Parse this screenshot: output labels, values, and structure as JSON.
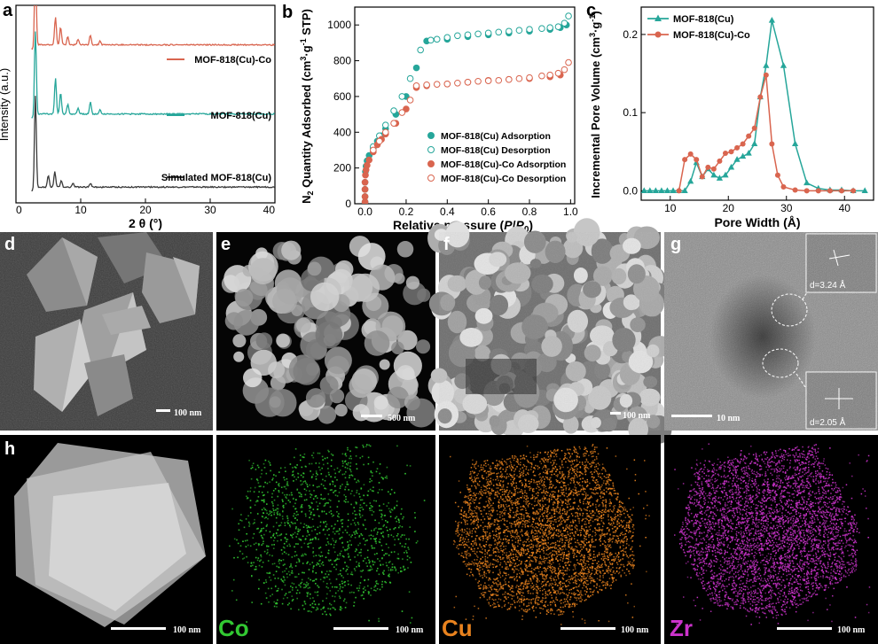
{
  "figure": {
    "panel_letters": [
      "a",
      "b",
      "c",
      "d",
      "e",
      "f",
      "g",
      "h"
    ],
    "colors": {
      "simulated": "#3a3a3a",
      "mof818cu": "#26a69a",
      "mof818cuco": "#d9654f",
      "co_map": "#32c832",
      "cu_map": "#e8821e",
      "zr_map": "#cc33cc"
    },
    "scale_bars": {
      "d": "100 nm",
      "e": "500 nm",
      "f": "100 nm",
      "g": "10 nm",
      "h1": "100 nm",
      "h2": "100 nm",
      "h3": "100 nm",
      "h4": "100 nm"
    },
    "lattice_labels": [
      "d=3.24 Å",
      "d=2.05 Å"
    ],
    "element_labels": [
      "Co",
      "Cu",
      "Zr"
    ]
  },
  "chart_data": [
    {
      "panel": "a",
      "type": "line",
      "xlabel": "2 θ (°)",
      "ylabel": "Intensity (a.u.)",
      "xlim": [
        0,
        40
      ],
      "xticks": [
        0,
        10,
        20,
        30,
        40
      ],
      "xtick_labels": [
        "0",
        "10",
        "20",
        "30",
        "40"
      ],
      "legend_placement": "inline-right",
      "series": [
        {
          "name": "MOF-818(Cu)-Co",
          "color": "#d9654f",
          "baseline": 0.8,
          "peaks": [
            [
              3.0,
              0.38
            ],
            [
              6.1,
              0.14
            ],
            [
              6.9,
              0.09
            ],
            [
              8.0,
              0.04
            ],
            [
              9.6,
              0.03
            ],
            [
              11.5,
              0.05
            ],
            [
              13.0,
              0.02
            ]
          ]
        },
        {
          "name": "MOF-818(Cu)",
          "color": "#26a69a",
          "baseline": 0.45,
          "peaks": [
            [
              3.0,
              0.42
            ],
            [
              6.1,
              0.18
            ],
            [
              6.9,
              0.11
            ],
            [
              8.0,
              0.05
            ],
            [
              9.6,
              0.03
            ],
            [
              11.5,
              0.06
            ],
            [
              13.0,
              0.02
            ]
          ]
        },
        {
          "name": "Simulated MOF-818(Cu)",
          "color": "#3a3a3a",
          "baseline": 0.08,
          "peaks": [
            [
              3.0,
              0.46
            ],
            [
              5.0,
              0.06
            ],
            [
              6.0,
              0.08
            ],
            [
              7.0,
              0.03
            ],
            [
              8.8,
              0.02
            ],
            [
              11.5,
              0.02
            ]
          ]
        }
      ]
    },
    {
      "panel": "b",
      "type": "scatter",
      "xlabel": "Relative pressure (P/P0)",
      "ylabel": "N2 Quantity Adsorbed (cm3·g-1 STP)",
      "xlim": [
        -0.05,
        1.02
      ],
      "ylim": [
        0,
        1100
      ],
      "xticks": [
        0.0,
        0.2,
        0.4,
        0.6,
        0.8,
        1.0
      ],
      "xtick_labels": [
        "0.0",
        "0.2",
        "0.4",
        "0.6",
        "0.8",
        "1.0"
      ],
      "yticks": [
        0,
        200,
        400,
        600,
        800,
        1000
      ],
      "ytick_labels": [
        "0",
        "200",
        "400",
        "600",
        "800",
        "1000"
      ],
      "legend_placement": "lower-right",
      "series": [
        {
          "name": "MOF-818(Cu) Adsorption",
          "color": "#26a69a",
          "filled": true,
          "x": [
            0.0,
            0.0,
            0.0,
            0.0,
            0.002,
            0.005,
            0.01,
            0.02,
            0.04,
            0.06,
            0.08,
            0.1,
            0.15,
            0.2,
            0.25,
            0.3,
            0.4,
            0.5,
            0.6,
            0.7,
            0.8,
            0.9,
            0.95,
            0.98
          ],
          "y": [
            10,
            40,
            80,
            120,
            180,
            210,
            240,
            270,
            310,
            350,
            380,
            420,
            500,
            600,
            760,
            910,
            920,
            935,
            945,
            955,
            965,
            975,
            985,
            1000
          ]
        },
        {
          "name": "MOF-818(Cu) Desorption",
          "color": "#26a69a",
          "filled": false,
          "x": [
            0.99,
            0.97,
            0.94,
            0.9,
            0.86,
            0.8,
            0.75,
            0.7,
            0.65,
            0.6,
            0.55,
            0.5,
            0.45,
            0.4,
            0.35,
            0.32,
            0.27,
            0.22,
            0.18,
            0.14,
            0.1,
            0.07,
            0.04
          ],
          "y": [
            1050,
            1010,
            990,
            985,
            980,
            975,
            970,
            965,
            960,
            955,
            950,
            945,
            940,
            930,
            920,
            915,
            860,
            700,
            600,
            520,
            440,
            380,
            320
          ]
        },
        {
          "name": "MOF-818(Cu)-Co Adsorption",
          "color": "#d9654f",
          "filled": true,
          "x": [
            0.0,
            0.0,
            0.0,
            0.0,
            0.002,
            0.005,
            0.01,
            0.02,
            0.04,
            0.06,
            0.08,
            0.1,
            0.15,
            0.2,
            0.25,
            0.3,
            0.4,
            0.5,
            0.6,
            0.7,
            0.8,
            0.9,
            0.95
          ],
          "y": [
            10,
            40,
            80,
            120,
            160,
            190,
            215,
            245,
            290,
            330,
            360,
            390,
            450,
            530,
            650,
            660,
            670,
            680,
            690,
            695,
            700,
            710,
            720
          ]
        },
        {
          "name": "MOF-818(Cu)-Co Desorption",
          "color": "#d9654f",
          "filled": false,
          "x": [
            0.99,
            0.97,
            0.94,
            0.9,
            0.86,
            0.8,
            0.75,
            0.7,
            0.65,
            0.6,
            0.55,
            0.5,
            0.45,
            0.4,
            0.35,
            0.3,
            0.25,
            0.22,
            0.18,
            0.14,
            0.1,
            0.07,
            0.04
          ],
          "y": [
            790,
            750,
            730,
            720,
            715,
            705,
            700,
            695,
            690,
            688,
            685,
            680,
            675,
            670,
            668,
            665,
            660,
            580,
            510,
            450,
            400,
            350,
            300
          ]
        }
      ]
    },
    {
      "panel": "c",
      "type": "line",
      "xlabel": "Pore Width (Å)",
      "ylabel": "Incremental Pore Volume (cm3·g-1)",
      "xlim": [
        5,
        45
      ],
      "ylim": [
        -0.012,
        0.235
      ],
      "xticks": [
        10,
        20,
        30,
        40
      ],
      "xtick_labels": [
        "10",
        "20",
        "30",
        "40"
      ],
      "yticks": [
        0.0,
        0.1,
        0.2
      ],
      "ytick_labels": [
        "0.0",
        "0.1",
        "0.2"
      ],
      "legend_placement": "top-left",
      "series": [
        {
          "name": "MOF-818(Cu)",
          "color": "#26a69a",
          "marker": "triangle",
          "x": [
            5.5,
            6.5,
            7.5,
            8.5,
            9.5,
            10.5,
            11.5,
            12.5,
            13.5,
            14.5,
            15.5,
            16.5,
            17.5,
            18.5,
            19.5,
            20.5,
            21.5,
            22.5,
            23.5,
            24.5,
            25.5,
            26.5,
            27.5,
            29.5,
            31.5,
            33.5,
            35.5,
            37.5,
            39.5,
            41.5,
            43.5
          ],
          "y": [
            0.0,
            0.0,
            0.0,
            0.0,
            0.0,
            0.0,
            0.0,
            0.0,
            0.012,
            0.036,
            0.018,
            0.028,
            0.02,
            0.016,
            0.02,
            0.03,
            0.04,
            0.044,
            0.048,
            0.06,
            0.12,
            0.16,
            0.218,
            0.16,
            0.06,
            0.01,
            0.003,
            0.001,
            0.001,
            0.0,
            0.0
          ]
        },
        {
          "name": "MOF-818(Cu)-Co",
          "color": "#d9654f",
          "marker": "circle",
          "x": [
            11.5,
            12.5,
            13.5,
            14.5,
            15.5,
            16.5,
            17.5,
            18.5,
            19.5,
            20.5,
            21.5,
            22.5,
            23.5,
            24.5,
            25.5,
            26.5,
            27.5,
            28.5,
            29.5,
            31.5,
            33.5,
            35.5,
            37.5,
            39.5,
            41.5
          ],
          "y": [
            0.0,
            0.04,
            0.047,
            0.04,
            0.018,
            0.03,
            0.028,
            0.038,
            0.048,
            0.05,
            0.055,
            0.06,
            0.07,
            0.08,
            0.12,
            0.148,
            0.06,
            0.02,
            0.005,
            0.001,
            0.0,
            0.0,
            0.0,
            0.0,
            0.0
          ]
        }
      ]
    }
  ]
}
